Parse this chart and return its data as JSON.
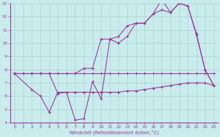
{
  "xlabel": "Windchill (Refroidissement éolien,°C)",
  "bg_color": "#c8ecec",
  "grid_color": "#b0d0d0",
  "line_color": "#993399",
  "xlim": [
    -0.5,
    23.5
  ],
  "ylim": [
    4,
    13
  ],
  "xticks": [
    0,
    1,
    2,
    3,
    4,
    5,
    6,
    7,
    8,
    9,
    10,
    11,
    12,
    13,
    14,
    15,
    16,
    17,
    18,
    19,
    20,
    21,
    22,
    23
  ],
  "yticks": [
    4,
    5,
    6,
    7,
    8,
    9,
    10,
    11,
    12,
    13
  ],
  "line1_x": [
    0,
    1,
    2,
    3,
    4,
    5,
    6,
    7,
    8,
    9,
    10,
    11,
    12,
    13,
    14,
    15,
    16,
    17,
    18,
    19,
    20,
    21,
    22,
    23
  ],
  "line1_y": [
    7.7,
    7.7,
    7.7,
    7.7,
    7.7,
    7.7,
    7.7,
    7.7,
    7.7,
    7.7,
    7.7,
    7.7,
    7.7,
    7.7,
    7.7,
    7.7,
    7.7,
    7.7,
    7.7,
    7.7,
    7.7,
    7.7,
    7.7,
    7.7
  ],
  "line2_x": [
    0,
    2,
    3,
    4,
    5,
    6,
    7,
    8,
    9,
    10,
    11,
    12,
    13,
    14,
    15,
    16,
    17,
    18,
    19,
    20,
    21,
    22,
    23
  ],
  "line2_y": [
    7.7,
    6.5,
    6.0,
    4.8,
    6.3,
    6.3,
    4.2,
    4.3,
    7.1,
    5.8,
    10.3,
    10.0,
    10.5,
    11.5,
    11.5,
    12.2,
    13.3,
    12.3,
    13.0,
    12.8,
    10.6,
    8.0,
    6.8
  ],
  "line3_x": [
    0,
    1,
    2,
    3,
    4,
    5,
    6,
    7,
    8,
    9,
    10,
    11,
    12,
    13,
    14,
    15,
    16,
    17,
    18,
    19,
    20,
    21,
    22,
    23
  ],
  "line3_y": [
    7.7,
    7.7,
    7.7,
    7.7,
    7.7,
    7.7,
    7.7,
    7.7,
    8.1,
    8.1,
    10.3,
    10.3,
    10.5,
    11.3,
    11.5,
    11.5,
    12.2,
    12.5,
    12.3,
    13.0,
    12.8,
    10.7,
    8.0,
    6.8
  ],
  "line4_x": [
    0,
    2,
    3,
    4,
    5,
    6,
    7,
    8,
    9,
    10,
    11,
    12,
    13,
    14,
    15,
    16,
    17,
    18,
    19,
    20,
    21,
    22,
    23
  ],
  "line4_y": [
    7.7,
    7.7,
    7.7,
    7.7,
    6.2,
    6.3,
    6.3,
    6.3,
    6.3,
    6.3,
    6.3,
    6.3,
    6.4,
    6.4,
    6.5,
    6.6,
    6.7,
    6.8,
    6.9,
    7.0,
    7.0,
    7.0,
    6.8
  ]
}
